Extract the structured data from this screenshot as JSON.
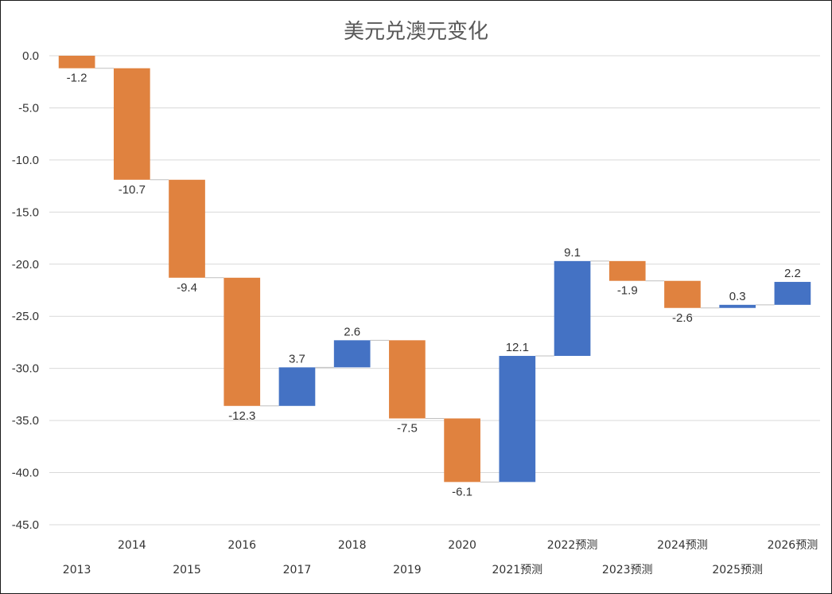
{
  "chart_data": {
    "type": "bar",
    "subtype": "waterfall",
    "title": "美元兑澳元变化",
    "xlabel": "",
    "ylabel": "",
    "ylim": [
      -45,
      0
    ],
    "yticks": [
      0,
      -5,
      -10,
      -15,
      -20,
      -25,
      -30,
      -35,
      -40,
      -45
    ],
    "ytick_labels": [
      "0.0",
      "-5.0",
      "-10.0",
      "-15.0",
      "-20.0",
      "-25.0",
      "-30.0",
      "-35.0",
      "-40.0",
      "-45.0"
    ],
    "grid": true,
    "legend": "none",
    "colors": {
      "increase": "#4472C4",
      "decrease": "#E0823F",
      "gridline": "#d9d9d9",
      "connector": "#bfbfbf"
    },
    "categories": [
      "2013",
      "2014",
      "2015",
      "2016",
      "2017",
      "2018",
      "2019",
      "2020",
      "2021预测",
      "2022预测",
      "2023预测",
      "2024预测",
      "2025预测",
      "2026预测"
    ],
    "values": [
      -1.2,
      -10.7,
      -9.4,
      -12.3,
      3.7,
      2.6,
      -7.5,
      -6.1,
      12.1,
      9.1,
      -1.9,
      -2.6,
      0.3,
      2.2
    ],
    "data_labels": [
      "-1.2",
      "-10.7",
      "-9.4",
      "-12.3",
      "3.7",
      "2.6",
      "-7.5",
      "-6.1",
      "12.1",
      "9.1",
      "-1.9",
      "-2.6",
      "0.3",
      "2.2"
    ]
  }
}
